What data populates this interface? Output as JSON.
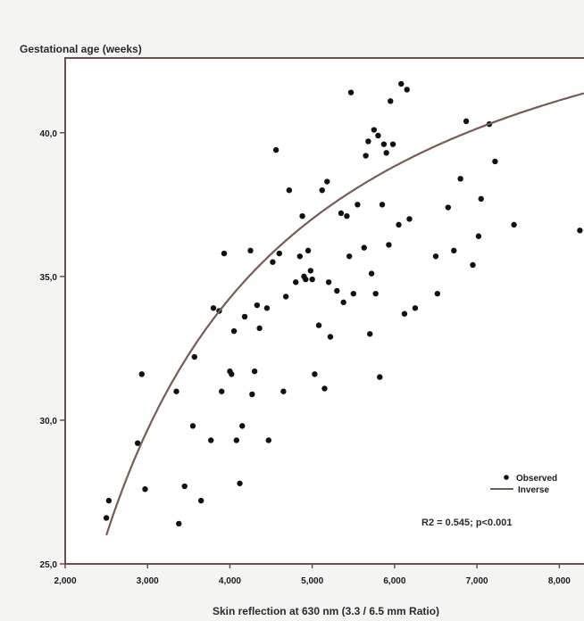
{
  "chart_data": {
    "type": "scatter",
    "ylabel": "Gestational age (weeks)",
    "xlabel": "Skin reflection at 630 nm (3.3 / 6.5 mm Ratio)",
    "xlim": [
      2.0,
      8.3
    ],
    "ylim": [
      25.0,
      42.6
    ],
    "x_ticks": [
      2.0,
      3.0,
      4.0,
      5.0,
      6.0,
      7.0,
      8.0
    ],
    "x_tick_labels": [
      "2,000",
      "3,000",
      "4,000",
      "5,000",
      "6,000",
      "7,000",
      "8,000"
    ],
    "y_ticks": [
      25.0,
      30.0,
      35.0,
      40.0
    ],
    "y_tick_labels": [
      "25,0",
      "30,0",
      "35,0",
      "40,0"
    ],
    "grid": false,
    "legend_position": "bottom-right",
    "legend": [
      {
        "label": "Observed",
        "marker": "point"
      },
      {
        "label": "Inverse",
        "marker": "line"
      }
    ],
    "annotation": "R2 = 0.545; p<0.001",
    "fit": {
      "type": "inverse",
      "a": 48.0,
      "b": -55.0,
      "x_start": 2.5,
      "x_end": 8.3
    },
    "colors": {
      "points": "#111111",
      "fit_line": "#7a5a55",
      "axes": "#6b4f4a",
      "plot_bg": "#ffffff"
    },
    "series": [
      {
        "name": "Observed",
        "points": [
          [
            2.5,
            26.6
          ],
          [
            2.53,
            27.2
          ],
          [
            2.88,
            29.2
          ],
          [
            2.93,
            31.6
          ],
          [
            2.97,
            27.6
          ],
          [
            3.35,
            31.0
          ],
          [
            3.38,
            26.4
          ],
          [
            3.45,
            27.7
          ],
          [
            3.55,
            29.8
          ],
          [
            3.57,
            32.2
          ],
          [
            3.65,
            27.2
          ],
          [
            3.77,
            29.3
          ],
          [
            3.8,
            33.9
          ],
          [
            3.87,
            33.8
          ],
          [
            3.9,
            31.0
          ],
          [
            3.93,
            35.8
          ],
          [
            4.0,
            31.7
          ],
          [
            4.02,
            31.6
          ],
          [
            4.05,
            33.1
          ],
          [
            4.08,
            29.3
          ],
          [
            4.12,
            27.8
          ],
          [
            4.15,
            29.8
          ],
          [
            4.18,
            33.6
          ],
          [
            4.25,
            35.9
          ],
          [
            4.27,
            30.9
          ],
          [
            4.3,
            31.7
          ],
          [
            4.33,
            34.0
          ],
          [
            4.36,
            33.2
          ],
          [
            4.45,
            33.9
          ],
          [
            4.47,
            29.3
          ],
          [
            4.52,
            35.5
          ],
          [
            4.56,
            39.4
          ],
          [
            4.6,
            35.8
          ],
          [
            4.65,
            31.0
          ],
          [
            4.68,
            34.3
          ],
          [
            4.72,
            38.0
          ],
          [
            4.8,
            34.8
          ],
          [
            4.85,
            35.7
          ],
          [
            4.88,
            37.1
          ],
          [
            4.9,
            35.0
          ],
          [
            4.92,
            34.9
          ],
          [
            4.95,
            35.9
          ],
          [
            4.98,
            35.2
          ],
          [
            5.0,
            34.9
          ],
          [
            5.03,
            31.6
          ],
          [
            5.08,
            33.3
          ],
          [
            5.12,
            38.0
          ],
          [
            5.15,
            31.1
          ],
          [
            5.18,
            38.3
          ],
          [
            5.2,
            34.8
          ],
          [
            5.22,
            32.9
          ],
          [
            5.3,
            34.5
          ],
          [
            5.35,
            37.2
          ],
          [
            5.38,
            34.1
          ],
          [
            5.42,
            37.1
          ],
          [
            5.45,
            35.7
          ],
          [
            5.47,
            41.4
          ],
          [
            5.5,
            34.4
          ],
          [
            5.55,
            37.5
          ],
          [
            5.63,
            36.0
          ],
          [
            5.65,
            39.2
          ],
          [
            5.68,
            39.7
          ],
          [
            5.7,
            33.0
          ],
          [
            5.72,
            35.1
          ],
          [
            5.75,
            40.1
          ],
          [
            5.77,
            34.4
          ],
          [
            5.8,
            39.9
          ],
          [
            5.82,
            31.5
          ],
          [
            5.85,
            37.5
          ],
          [
            5.87,
            39.6
          ],
          [
            5.9,
            39.3
          ],
          [
            5.93,
            36.1
          ],
          [
            5.95,
            41.1
          ],
          [
            5.98,
            39.6
          ],
          [
            6.05,
            36.8
          ],
          [
            6.08,
            41.7
          ],
          [
            6.12,
            33.7
          ],
          [
            6.15,
            41.5
          ],
          [
            6.18,
            37.0
          ],
          [
            6.25,
            33.9
          ],
          [
            6.5,
            35.7
          ],
          [
            6.52,
            34.4
          ],
          [
            6.65,
            37.4
          ],
          [
            6.72,
            35.9
          ],
          [
            6.8,
            38.4
          ],
          [
            6.87,
            40.4
          ],
          [
            6.95,
            35.4
          ],
          [
            7.02,
            36.4
          ],
          [
            7.05,
            37.7
          ],
          [
            7.15,
            40.3
          ],
          [
            7.22,
            39.0
          ],
          [
            7.45,
            36.8
          ],
          [
            8.25,
            36.6
          ]
        ]
      }
    ]
  }
}
